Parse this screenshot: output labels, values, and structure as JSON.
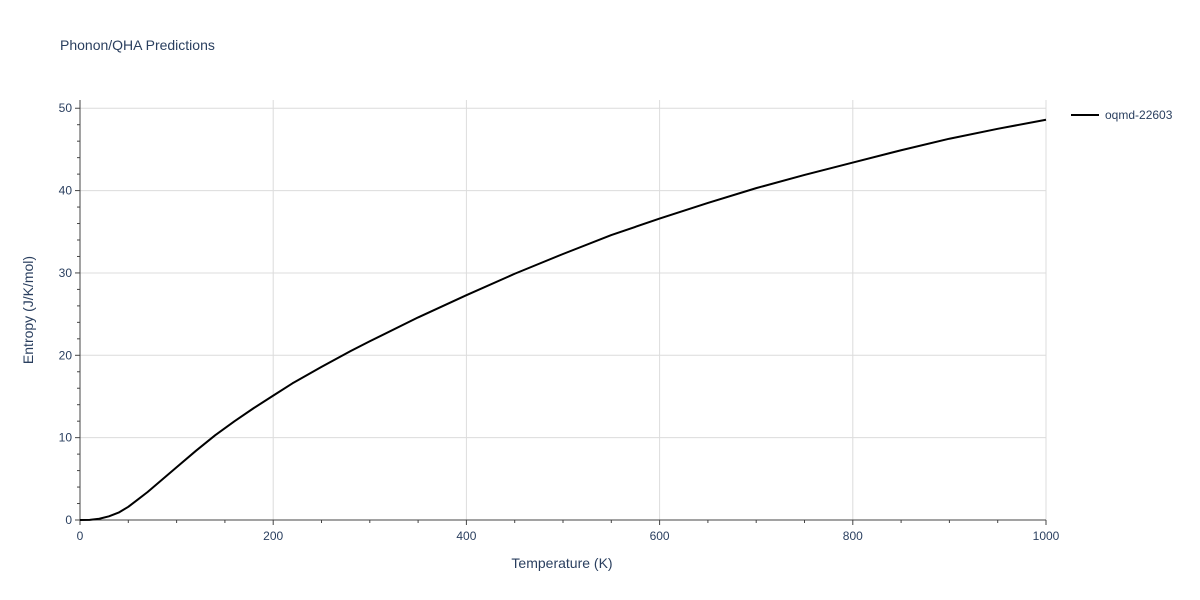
{
  "chart_data": {
    "type": "line",
    "title": "Phonon/QHA Predictions",
    "xlabel": "Temperature (K)",
    "ylabel": "Entropy (J/K/mol)",
    "xlim": [
      0,
      1000
    ],
    "ylim": [
      0,
      51
    ],
    "x_ticks": [
      0,
      200,
      400,
      600,
      800,
      1000
    ],
    "y_ticks": [
      0,
      10,
      20,
      30,
      40,
      50
    ],
    "grid": true,
    "legend_position": "top-right",
    "series": [
      {
        "name": "oqmd-22603",
        "color": "#000000",
        "x": [
          0,
          10,
          20,
          30,
          40,
          50,
          60,
          70,
          80,
          90,
          100,
          120,
          140,
          160,
          180,
          200,
          220,
          250,
          280,
          300,
          350,
          400,
          450,
          500,
          550,
          600,
          650,
          700,
          750,
          800,
          850,
          900,
          950,
          1000
        ],
        "y": [
          0,
          0.02,
          0.15,
          0.45,
          0.9,
          1.6,
          2.5,
          3.4,
          4.4,
          5.4,
          6.4,
          8.4,
          10.3,
          12.0,
          13.6,
          15.1,
          16.6,
          18.6,
          20.5,
          21.7,
          24.6,
          27.3,
          29.9,
          32.3,
          34.6,
          36.6,
          38.5,
          40.3,
          41.9,
          43.4,
          44.9,
          46.3,
          47.5,
          48.6
        ]
      }
    ]
  }
}
